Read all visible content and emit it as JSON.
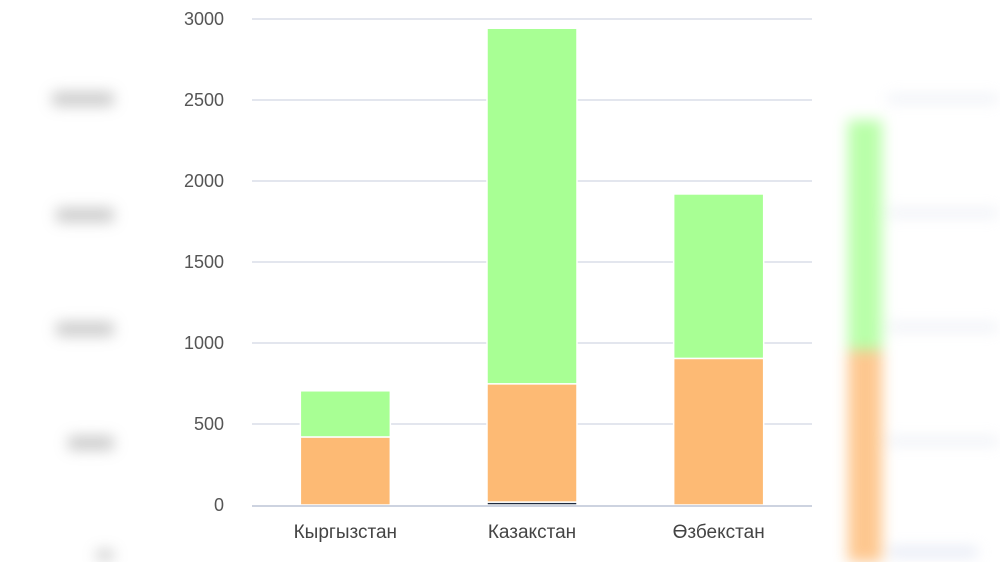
{
  "chart_data": {
    "type": "bar",
    "stacked": true,
    "categories": [
      "Кыргызстан",
      "Казакстан",
      "Өзбекстан"
    ],
    "series": [
      {
        "values": [
          0,
          18,
          0
        ],
        "color": "#1f2a3d"
      },
      {
        "values": [
          420,
          730,
          905
        ],
        "color": "#fdba74"
      },
      {
        "values": [
          285,
          2195,
          1015
        ],
        "color": "#a8ff94"
      }
    ],
    "yticks": [
      0,
      500,
      1000,
      1500,
      2000,
      2500,
      3000
    ],
    "ylim": [
      0,
      3000
    ],
    "grid": true,
    "title": "",
    "xlabel": "",
    "ylabel": ""
  }
}
